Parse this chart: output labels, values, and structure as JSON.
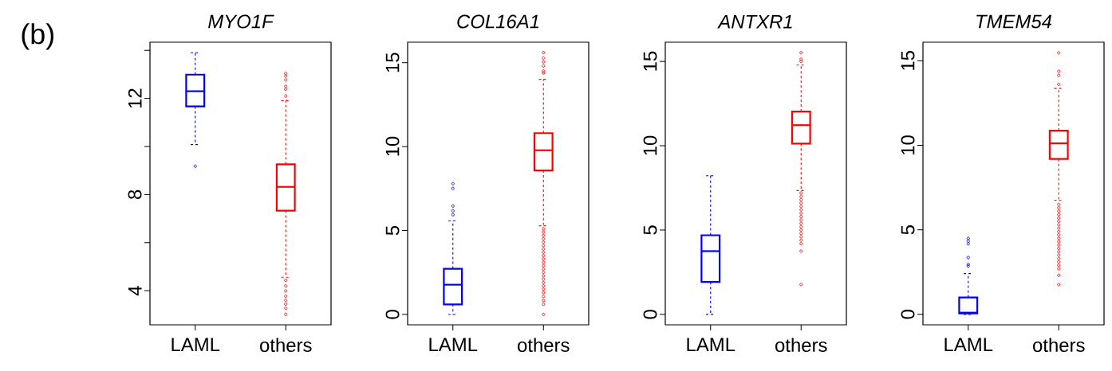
{
  "chart_data": [
    {
      "type": "box",
      "title": "MYO1F",
      "categories": [
        "LAML",
        "others"
      ],
      "colors": [
        "#0000ff",
        "#ff0000"
      ],
      "annotations": [
        "(b)"
      ],
      "ylim": [
        2.58,
        14.34
      ],
      "yticks": [
        4,
        {
          "value": 6,
          "label": null
        },
        8,
        {
          "value": 10,
          "label": null
        },
        12,
        {
          "value": 14,
          "label": null
        }
      ],
      "boxes": [
        {
          "low": 10.08,
          "q1": 11.67,
          "median": 12.3,
          "q3": 12.99,
          "high": 13.9,
          "outliers": [
            9.18
          ]
        },
        {
          "low": 4.56,
          "q1": 7.33,
          "median": 8.32,
          "q3": 9.26,
          "high": 11.91,
          "outliers": [
            13.04,
            12.93,
            12.77,
            12.5,
            12.38,
            12.1,
            4.43,
            4.2,
            3.99,
            3.77,
            3.6,
            3.44,
            3.27,
            3.02
          ]
        }
      ]
    },
    {
      "type": "box",
      "title": "COL16A1",
      "categories": [
        "LAML",
        "others"
      ],
      "colors": [
        "#0000ff",
        "#ff0000"
      ],
      "ylim": [
        -0.62,
        16.22
      ],
      "yticks": [
        0,
        5,
        10,
        15
      ],
      "boxes": [
        {
          "low": 0,
          "q1": 0.6,
          "median": 1.77,
          "q3": 2.72,
          "high": 5.58,
          "outliers": [
            5.94,
            6.17,
            6.46,
            7.51,
            7.79
          ]
        },
        {
          "low": 5.28,
          "q1": 8.58,
          "median": 9.78,
          "q3": 10.8,
          "high": 14.01,
          "outliers": [
            14.39,
            14.5,
            14.81,
            15.05,
            15.28,
            15.6,
            5.1,
            4.9,
            4.7,
            4.5,
            4.3,
            4.1,
            3.9,
            3.7,
            3.5,
            3.3,
            3.1,
            2.9,
            2.7,
            2.5,
            2.3,
            2.1,
            1.9,
            1.7,
            1.5,
            1.3,
            1.07,
            0.83,
            0.6,
            0
          ]
        }
      ]
    },
    {
      "type": "box",
      "title": "ANTXR1",
      "categories": [
        "LAML",
        "others"
      ],
      "colors": [
        "#0000ff",
        "#ff0000"
      ],
      "ylim": [
        -0.62,
        16.14
      ],
      "yticks": [
        0,
        5,
        10,
        15
      ],
      "boxes": [
        {
          "low": 0,
          "q1": 1.92,
          "median": 3.75,
          "q3": 4.69,
          "high": 8.22
        },
        {
          "low": 7.34,
          "q1": 10.13,
          "median": 11.22,
          "q3": 12.03,
          "high": 14.78,
          "outliers": [
            15.0,
            15.13,
            15.52,
            7.2,
            7.0,
            6.8,
            6.6,
            6.4,
            6.2,
            6.0,
            5.8,
            5.6,
            5.4,
            5.2,
            5.0,
            4.8,
            4.6,
            4.4,
            4.19,
            3.75,
            1.77
          ]
        }
      ]
    },
    {
      "type": "box",
      "title": "TMEM54",
      "categories": [
        "LAML",
        "others"
      ],
      "colors": [
        "#0000ff",
        "#ff0000"
      ],
      "ylim": [
        -0.62,
        16.1
      ],
      "yticks": [
        0,
        5,
        10,
        15
      ],
      "boxes": [
        {
          "low": 0,
          "q1": 0.05,
          "median": 0.1,
          "q3": 1.0,
          "high": 2.41,
          "outliers": [
            2.85,
            2.96,
            3.36,
            4.17,
            4.33,
            4.49
          ]
        },
        {
          "low": 6.74,
          "q1": 9.19,
          "median": 10.12,
          "q3": 10.87,
          "high": 13.36,
          "outliers": [
            13.6,
            14.14,
            14.38,
            15.47,
            6.5,
            6.3,
            6.1,
            5.9,
            5.7,
            5.5,
            5.3,
            5.1,
            4.9,
            4.7,
            4.5,
            4.3,
            4.1,
            3.9,
            3.7,
            3.5,
            3.3,
            3.1,
            2.9,
            2.7,
            2.31,
            1.76
          ]
        }
      ]
    }
  ]
}
